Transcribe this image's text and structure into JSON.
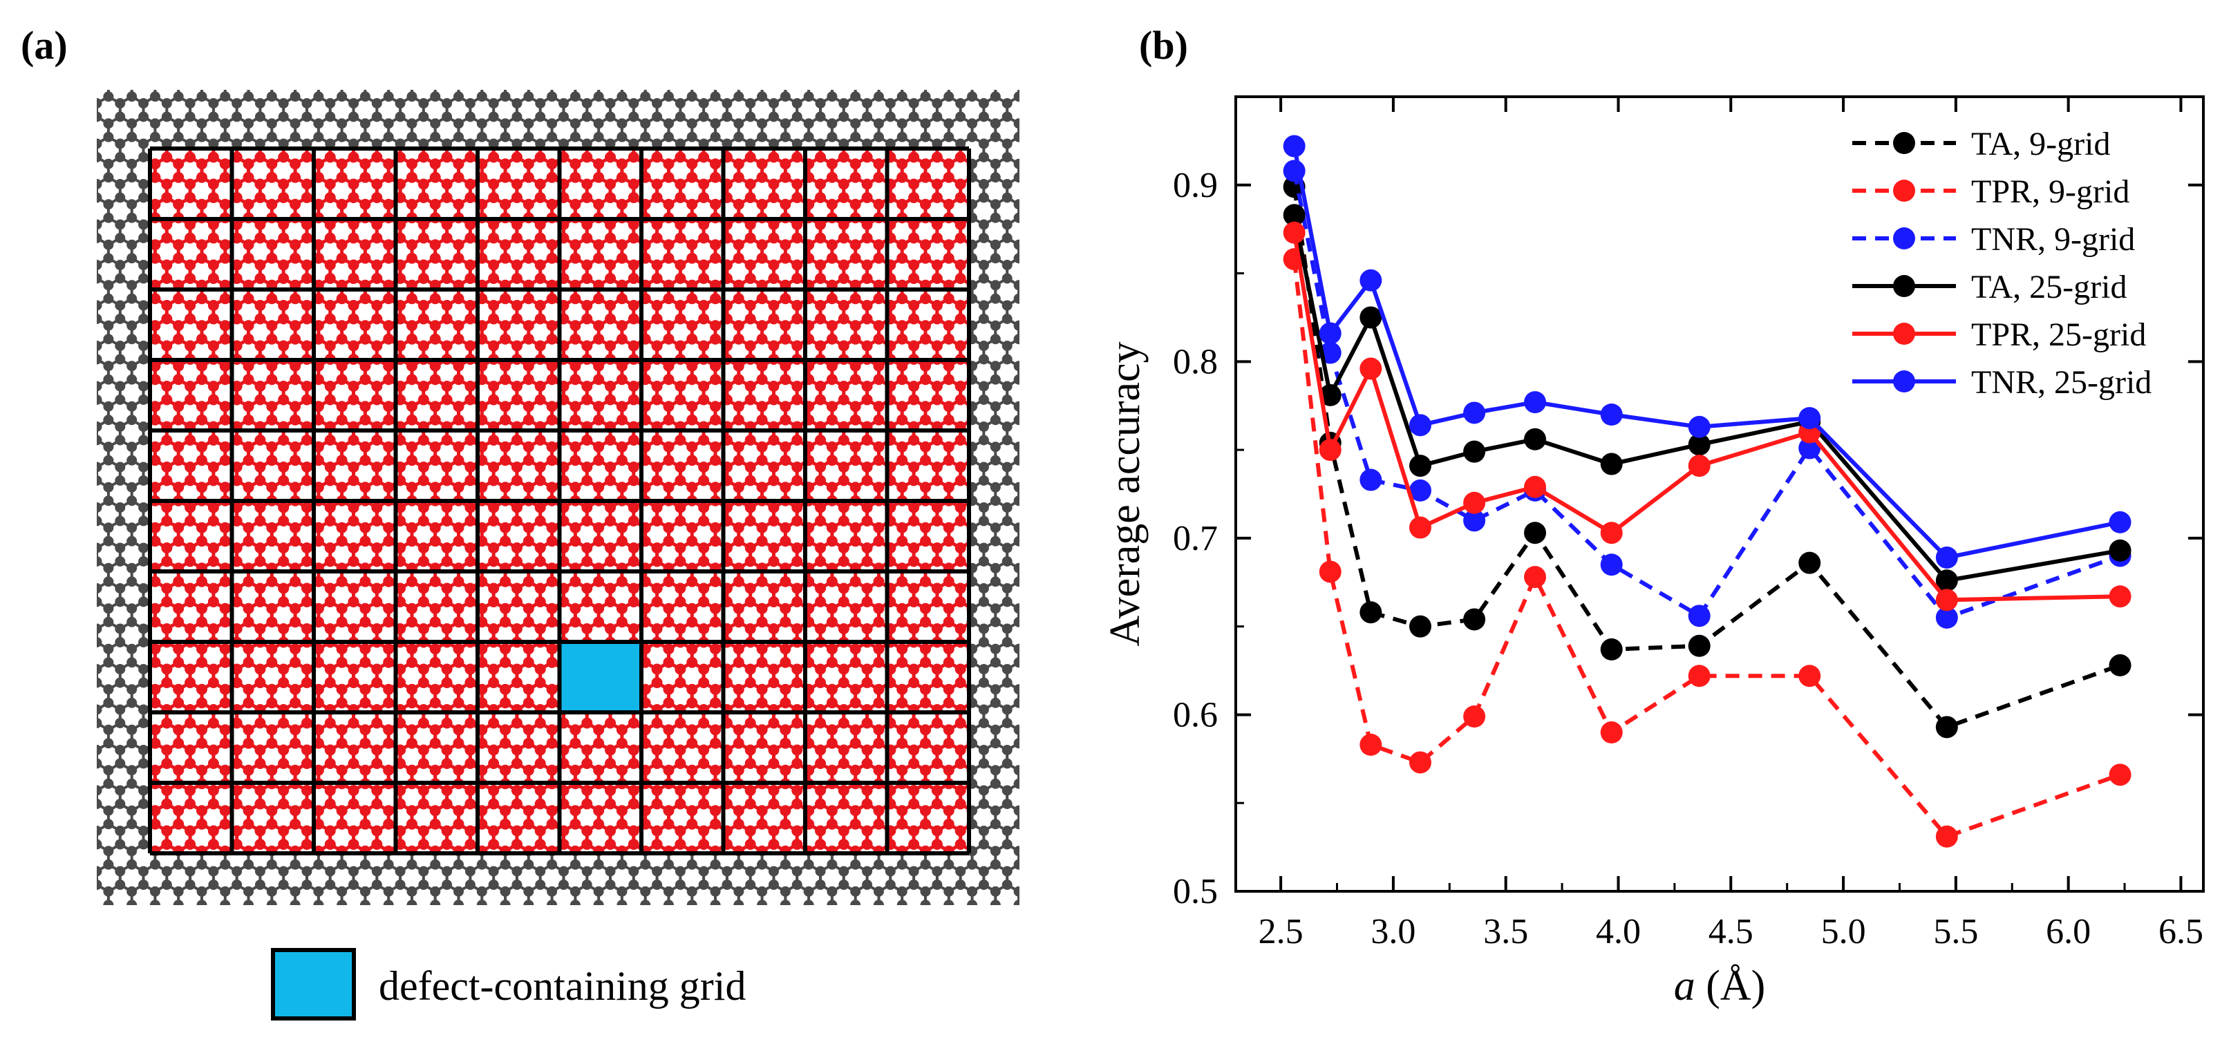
{
  "panel_a": {
    "label": "(a)",
    "legend_text": "defect-containing grid",
    "grid_rows": 10,
    "grid_cols": 10,
    "defect_cell": [
      7,
      5
    ],
    "colors": {
      "lattice_inner": "#e8171d",
      "lattice_outer": "#4a4a4a",
      "defect": "#12b7ea",
      "grid_line": "#000000"
    }
  },
  "panel_b": {
    "label": "(b)"
  },
  "chart_data": {
    "type": "line",
    "title": "",
    "xlabel_italic": "a",
    "xlabel_rest": " (Å)",
    "ylabel": "Average accuracy",
    "xlim": [
      2.3,
      6.6
    ],
    "ylim": [
      0.5,
      0.95
    ],
    "x_ticks": [
      "2.5",
      "3.0",
      "3.5",
      "4.0",
      "4.5",
      "5.0",
      "5.5",
      "6.0",
      "6.5"
    ],
    "y_ticks": [
      "0.5",
      "0.6",
      "0.7",
      "0.8",
      "0.9"
    ],
    "x": [
      2.56,
      2.72,
      2.9,
      3.12,
      3.36,
      3.63,
      3.97,
      4.36,
      4.85,
      5.46,
      6.23
    ],
    "legend_position": "top-right",
    "series": [
      {
        "name": "TA, 9-grid",
        "style": "dashed",
        "color": "#000000",
        "values": [
          0.899,
          0.754,
          0.658,
          0.65,
          0.654,
          0.703,
          0.637,
          0.639,
          0.686,
          0.593,
          0.628
        ]
      },
      {
        "name": "TPR, 9-grid",
        "style": "dashed",
        "color": "#ff1a1a",
        "values": [
          0.858,
          0.681,
          0.583,
          0.573,
          0.599,
          0.678,
          0.59,
          0.622,
          0.622,
          0.531,
          0.566
        ]
      },
      {
        "name": "TNR, 9-grid",
        "style": "dashed",
        "color": "#1a1aff",
        "values": [
          0.908,
          0.805,
          0.733,
          0.727,
          0.71,
          0.727,
          0.685,
          0.656,
          0.751,
          0.655,
          0.69
        ]
      },
      {
        "name": "TA, 25-grid",
        "style": "solid",
        "color": "#000000",
        "values": [
          0.883,
          0.781,
          0.825,
          0.741,
          0.749,
          0.756,
          0.742,
          0.753,
          0.766,
          0.676,
          0.693
        ]
      },
      {
        "name": "TPR, 25-grid",
        "style": "solid",
        "color": "#ff1a1a",
        "values": [
          0.873,
          0.75,
          0.796,
          0.706,
          0.72,
          0.729,
          0.703,
          0.741,
          0.76,
          0.665,
          0.667
        ]
      },
      {
        "name": "TNR, 25-grid",
        "style": "solid",
        "color": "#1a1aff",
        "values": [
          0.922,
          0.816,
          0.846,
          0.764,
          0.771,
          0.777,
          0.77,
          0.763,
          0.768,
          0.689,
          0.709
        ]
      }
    ]
  }
}
